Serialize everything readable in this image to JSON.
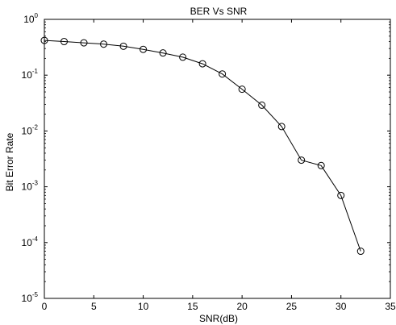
{
  "chart_data": {
    "type": "line",
    "title": "BER Vs SNR",
    "xlabel": "SNR(dB)",
    "ylabel": "Bit Error Rate",
    "xscale": "linear",
    "yscale": "log",
    "xlim": [
      0,
      35
    ],
    "ylim": [
      1e-05,
      1
    ],
    "grid": false,
    "legend": "none",
    "x_ticks": [
      "0",
      "5",
      "10",
      "15",
      "20",
      "25",
      "30",
      "35"
    ],
    "y_ticks": [
      {
        "base": "10",
        "exp": "0"
      },
      {
        "base": "10",
        "exp": "-1"
      },
      {
        "base": "10",
        "exp": "-2"
      },
      {
        "base": "10",
        "exp": "-3"
      },
      {
        "base": "10",
        "exp": "-4"
      },
      {
        "base": "10",
        "exp": "-5"
      }
    ],
    "series": [
      {
        "marker": "circle",
        "color": "#000000",
        "x": [
          0,
          2,
          4,
          6,
          8,
          10,
          12,
          14,
          16,
          18,
          20,
          22,
          24,
          26,
          28,
          30,
          32
        ],
        "y": [
          0.42,
          0.4,
          0.38,
          0.36,
          0.33,
          0.29,
          0.25,
          0.21,
          0.16,
          0.105,
          0.056,
          0.029,
          0.012,
          0.003,
          0.0024,
          0.0007,
          7e-05
        ]
      }
    ]
  }
}
